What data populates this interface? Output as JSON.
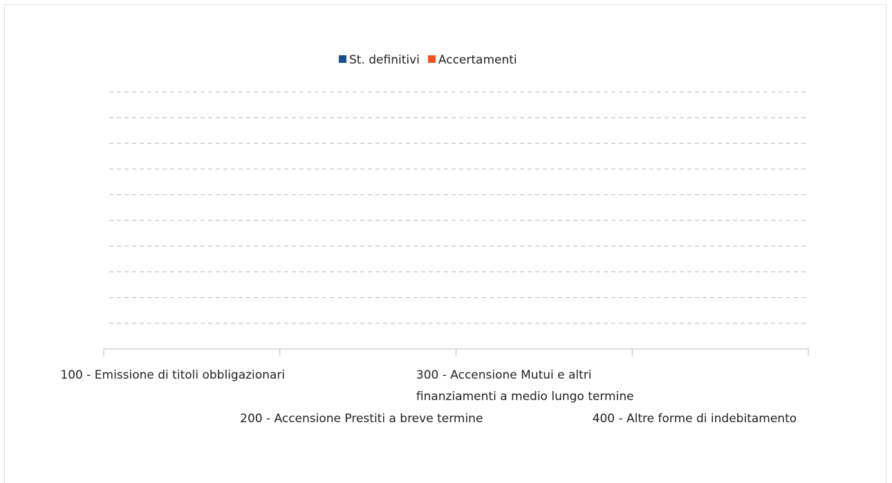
{
  "chart_data": {
    "type": "bar",
    "categories": [
      "100 - Emissione di titoli obbligazionari",
      "200 - Accensione Prestiti a breve termine",
      "300 - Accensione Mutui e altri finanziamenti a medio lungo termine",
      "400 - Altre forme di indebitamento"
    ],
    "series": [
      {
        "name": "St. definitivi",
        "color": "#1f4e8c",
        "values": [
          0,
          0,
          0,
          0
        ]
      },
      {
        "name": "Accertamenti",
        "color": "#f4511e",
        "values": [
          0,
          0,
          0,
          0
        ]
      }
    ],
    "ylim": [
      0,
      10
    ],
    "yticks": [
      0,
      1,
      2,
      3,
      4,
      5,
      6,
      7,
      8,
      9,
      10
    ],
    "grid": true,
    "legend": "top"
  }
}
